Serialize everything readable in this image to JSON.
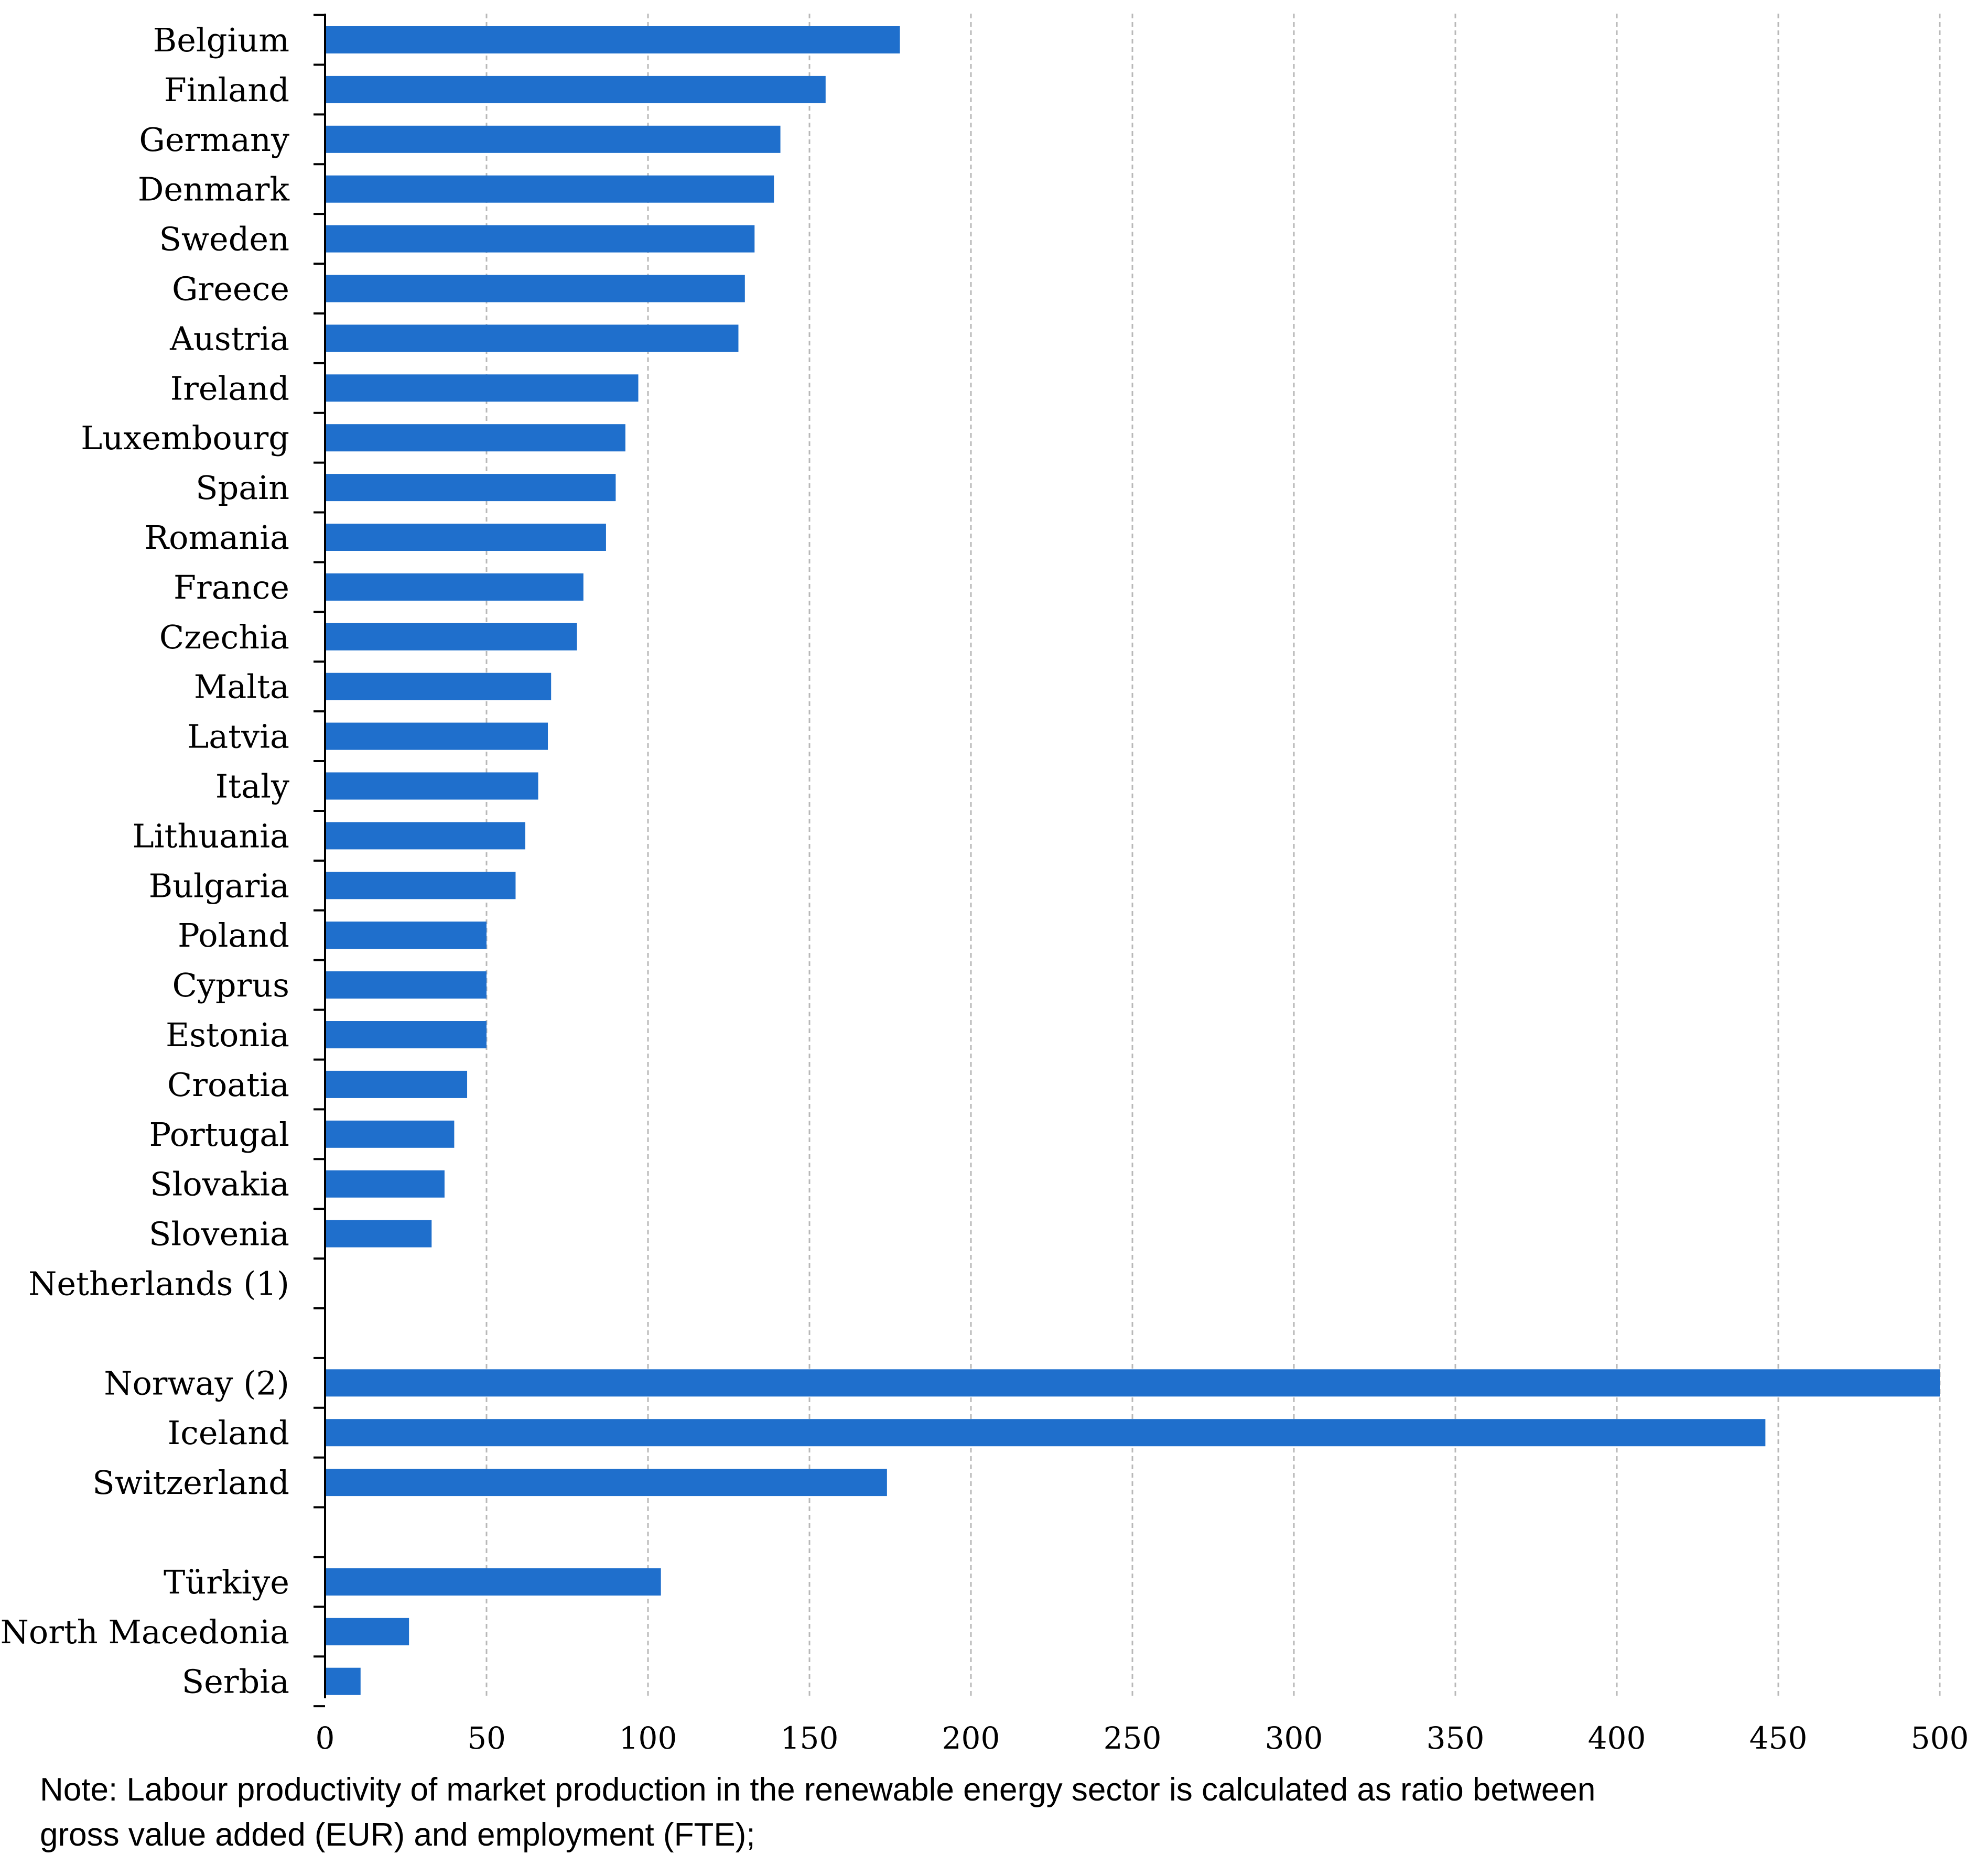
{
  "chart_data": {
    "type": "bar",
    "orientation": "horizontal",
    "title": "",
    "xlabel": "",
    "ylabel": "",
    "xlim": [
      0,
      500
    ],
    "x_ticks": [
      0,
      50,
      100,
      150,
      200,
      250,
      300,
      350,
      400,
      450,
      500
    ],
    "grid": "vertical dashed",
    "bar_color": "#1F6FCC",
    "groups": [
      {
        "items": [
          {
            "label": "Belgium",
            "value": 178
          },
          {
            "label": "Finland",
            "value": 155
          },
          {
            "label": "Germany",
            "value": 141
          },
          {
            "label": "Denmark",
            "value": 139
          },
          {
            "label": "Sweden",
            "value": 133
          },
          {
            "label": "Greece",
            "value": 130
          },
          {
            "label": "Austria",
            "value": 128
          },
          {
            "label": "Ireland",
            "value": 97
          },
          {
            "label": "Luxembourg",
            "value": 93
          },
          {
            "label": "Spain",
            "value": 90
          },
          {
            "label": "Romania",
            "value": 87
          },
          {
            "label": "France",
            "value": 80
          },
          {
            "label": "Czechia",
            "value": 78
          },
          {
            "label": "Malta",
            "value": 70
          },
          {
            "label": "Latvia",
            "value": 69
          },
          {
            "label": "Italy",
            "value": 66
          },
          {
            "label": "Lithuania",
            "value": 62
          },
          {
            "label": "Bulgaria",
            "value": 59
          },
          {
            "label": "Poland",
            "value": 50
          },
          {
            "label": "Cyprus",
            "value": 50
          },
          {
            "label": "Estonia",
            "value": 50
          },
          {
            "label": "Croatia",
            "value": 44
          },
          {
            "label": "Portugal",
            "value": 40
          },
          {
            "label": "Slovakia",
            "value": 37
          },
          {
            "label": "Slovenia",
            "value": 33
          },
          {
            "label": "Netherlands (1)",
            "value": null
          }
        ]
      },
      {
        "items": [
          {
            "label": "Norway (2)",
            "value": 500
          },
          {
            "label": "Iceland",
            "value": 446
          },
          {
            "label": "Switzerland",
            "value": 174
          }
        ]
      },
      {
        "items": [
          {
            "label": "Türkiye",
            "value": 104
          },
          {
            "label": "North Macedonia",
            "value": 26
          },
          {
            "label": "Serbia",
            "value": 11
          }
        ]
      }
    ]
  },
  "note": {
    "line1": "Note: Labour productivity of market production in the renewable energy sector is calculated as ratio between",
    "line2": "gross value added (EUR) and employment (FTE);"
  }
}
